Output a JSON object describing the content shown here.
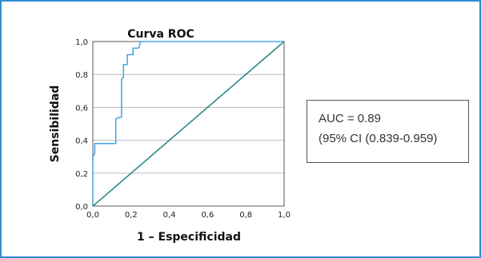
{
  "chart_data": {
    "type": "line",
    "title": "Curva ROC",
    "xlabel": "1 – Especificidad",
    "ylabel": "Sensibilidad",
    "xlim": [
      0,
      1
    ],
    "ylim": [
      0,
      1
    ],
    "xticks": [
      "0,0",
      "0,2",
      "0,4",
      "0,6",
      "0,8",
      "1,0"
    ],
    "yticks": [
      "0,0",
      "0,2",
      "0,4",
      "0,6",
      "0,8",
      "1,0"
    ],
    "grid": "horizontal",
    "series": [
      {
        "color": "#4aa8e0",
        "points": [
          [
            0.0,
            0.0
          ],
          [
            0.0,
            0.3
          ],
          [
            0.01,
            0.32
          ],
          [
            0.01,
            0.38
          ],
          [
            0.12,
            0.38
          ],
          [
            0.12,
            0.53
          ],
          [
            0.14,
            0.54
          ],
          [
            0.15,
            0.54
          ],
          [
            0.15,
            0.77
          ],
          [
            0.16,
            0.78
          ],
          [
            0.16,
            0.86
          ],
          [
            0.18,
            0.86
          ],
          [
            0.18,
            0.92
          ],
          [
            0.21,
            0.92
          ],
          [
            0.21,
            0.96
          ],
          [
            0.24,
            0.96
          ],
          [
            0.25,
            1.0
          ],
          [
            1.0,
            1.0
          ]
        ]
      },
      {
        "color": "#2b8a8a",
        "points": [
          [
            0.0,
            0.0
          ],
          [
            1.0,
            1.0
          ]
        ]
      }
    ],
    "annotation": {
      "auc": "AUC = 0.89",
      "ci": "(95% CI (0.839-0.959)"
    }
  }
}
